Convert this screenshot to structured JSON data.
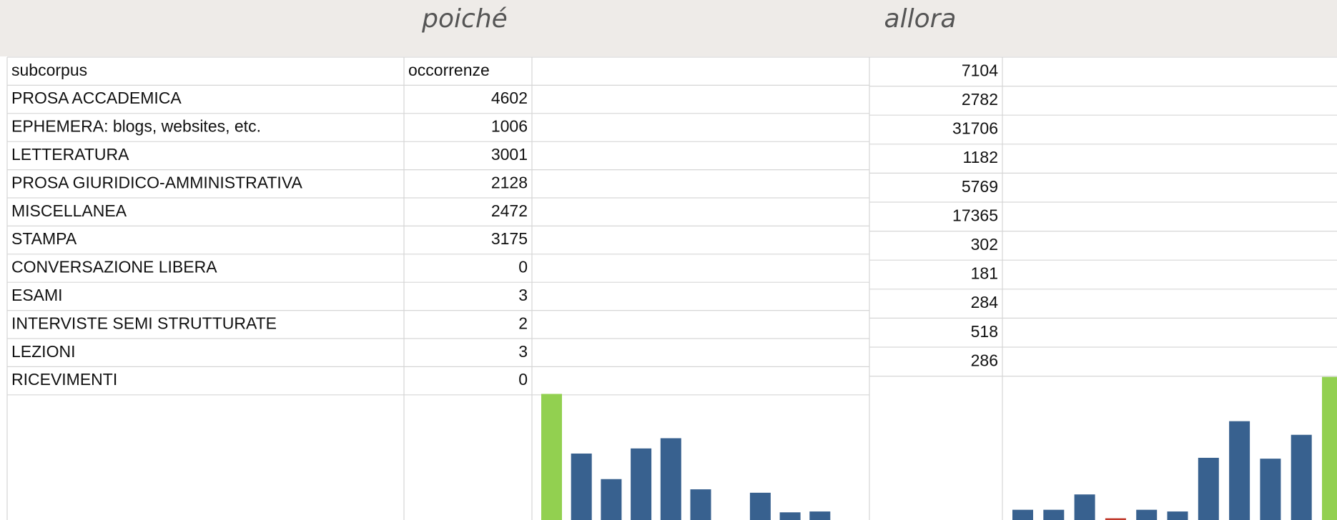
{
  "header": {
    "titles": [
      "poiché",
      "allora"
    ]
  },
  "left_table": {
    "columns": [
      "subcorpus",
      "occorrenze"
    ],
    "rows": [
      [
        "PROSA ACCADEMICA",
        4602
      ],
      [
        "EPHEMERA: blogs, websites, etc.",
        1006
      ],
      [
        "LETTERATURA",
        3001
      ],
      [
        "PROSA GIURIDICO-AMMINISTRATIVA",
        2128
      ],
      [
        "MISCELLANEA",
        2472
      ],
      [
        "STAMPA",
        3175
      ],
      [
        "CONVERSAZIONE LIBERA",
        0
      ],
      [
        "ESAMI",
        3
      ],
      [
        "INTERVISTE SEMI STRUTTURATE",
        2
      ],
      [
        "LEZIONI",
        3
      ],
      [
        "RICEVIMENTI",
        0
      ]
    ]
  },
  "right_table": {
    "values": [
      7104,
      2782,
      31706,
      1182,
      5769,
      17365,
      302,
      181,
      284,
      518,
      286
    ]
  },
  "chart_data": [
    {
      "type": "bar",
      "values": [
        148,
        78,
        48,
        84,
        96,
        36,
        0,
        32,
        9,
        10,
        0
      ],
      "colors": [
        "#92d050",
        "#38618f",
        "#38618f",
        "#38618f",
        "#38618f",
        "#38618f",
        "#38618f",
        "#38618f",
        "#38618f",
        "#38618f",
        "#38618f"
      ]
    },
    {
      "type": "bar",
      "values": [
        12,
        12,
        30,
        2,
        12,
        10,
        73,
        116,
        72,
        100,
        168
      ],
      "colors": [
        "#38618f",
        "#38618f",
        "#38618f",
        "#c0392b",
        "#38618f",
        "#38618f",
        "#38618f",
        "#38618f",
        "#38618f",
        "#38618f",
        "#92d050"
      ]
    }
  ]
}
